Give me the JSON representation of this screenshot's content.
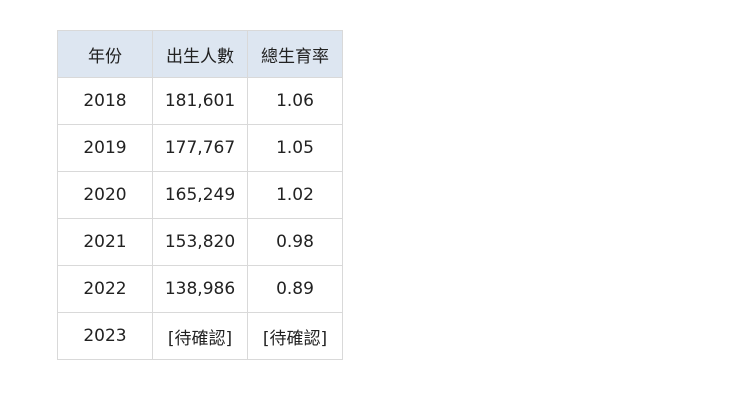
{
  "table": {
    "headers": [
      "年份",
      "出生人數",
      "總生育率"
    ],
    "rows": [
      [
        "2018",
        "181,601",
        "1.06"
      ],
      [
        "2019",
        "177,767",
        "1.05"
      ],
      [
        "2020",
        "165,249",
        "1.02"
      ],
      [
        "2021",
        "153,820",
        "0.98"
      ],
      [
        "2022",
        "138,986",
        "0.89"
      ],
      [
        "2023",
        "[待確認]",
        "[待確認]"
      ]
    ]
  },
  "colors": {
    "header_bg": "#dde6f1",
    "border": "#d9d9d9"
  }
}
